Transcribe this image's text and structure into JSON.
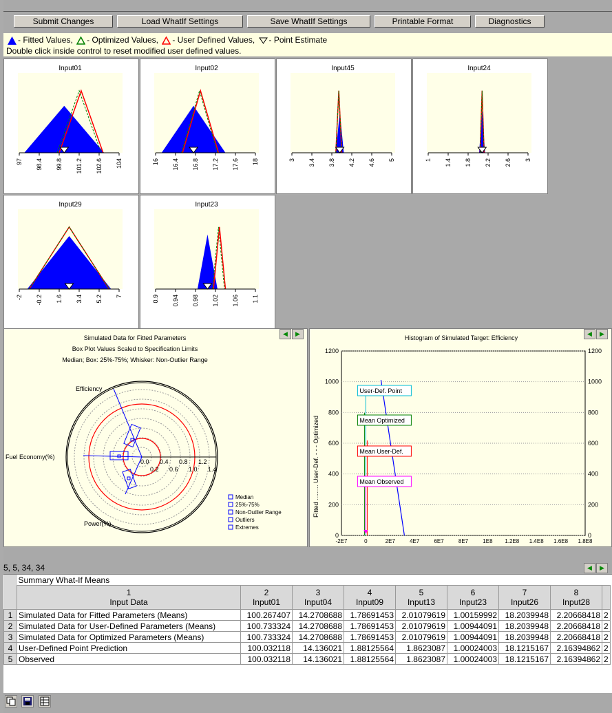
{
  "toolbar": {
    "submit": "Submit Changes",
    "load": "Load WhatIf Settings",
    "save": "Save WhatIf Settings",
    "print": "Printable Format",
    "diag": "Diagnostics"
  },
  "legend": {
    "fitted": "- Fitted Values,",
    "optimized": "- Optimized Values,",
    "user": "- User Defined Values,",
    "point": "- Point Estimate",
    "hint": "Double click inside control to reset modified user defined values."
  },
  "colors": {
    "fitted": "#0000ff",
    "optimized": "#008000",
    "user": "#ff0000",
    "panel_bg": "#ffffe8"
  },
  "chart_data": [
    {
      "type": "area",
      "title": "Input01",
      "ticks": [
        "97",
        "98.4",
        "99.8",
        "101.2",
        "102.6",
        "104"
      ]
    },
    {
      "type": "area",
      "title": "Input02",
      "ticks": [
        "16",
        "16.4",
        "16.8",
        "17.2",
        "17.6",
        "18"
      ]
    },
    {
      "type": "area",
      "title": "Input45",
      "ticks": [
        "3",
        "3.4",
        "3.8",
        "4.2",
        "4.6",
        "5"
      ]
    },
    {
      "type": "area",
      "title": "Input24",
      "ticks": [
        "1",
        "1.4",
        "1.8",
        "2.2",
        "2.6",
        "3"
      ]
    },
    {
      "type": "area",
      "title": "Input29",
      "ticks": [
        "-2",
        "-0.2",
        "1.6",
        "3.4",
        "5.2",
        "7"
      ]
    },
    {
      "type": "area",
      "title": "Input23",
      "ticks": [
        "0.9",
        "0.94",
        "0.98",
        "1.02",
        "1.06",
        "1.1"
      ]
    },
    {
      "type": "other",
      "title": "Simulated Data for Fitted Parameters",
      "subtitle": "Box Plot Values Scaled to Specification Limits",
      "subtitle2": "Median; Box: 25%-75%; Whisker: Non-Outlier Range",
      "axes": [
        "Efficiency",
        "Fuel Economy(%)",
        "Power(%)"
      ],
      "radial_ticks": [
        "0.0",
        "0.2",
        "0.4",
        "0.6",
        "0.8",
        "1.0",
        "1.2",
        "1.4"
      ],
      "legend": [
        "Median",
        "25%-75%",
        "Non-Outlier Range",
        "Outliers",
        "Extremes"
      ]
    },
    {
      "type": "line",
      "title": "Histogram of Simulated Target: Efficiency",
      "yticks": [
        "0",
        "200",
        "400",
        "600",
        "800",
        "1000",
        "1200"
      ],
      "xticks": [
        "-2E7",
        "0",
        "2E7",
        "4E7",
        "6E7",
        "8E7",
        "1E8",
        "1.2E8",
        "1.4E8",
        "1.6E8",
        "1.8E8"
      ],
      "ylabel": "Fitted ......... User-Def. - - - Optimized",
      "labels": [
        "User-Def. Point",
        "Mean Optimized",
        "Mean User-Def.",
        "Mean Observed"
      ]
    }
  ],
  "status": "5, 5, 34, 34",
  "table": {
    "caption": "Summary What-If Means",
    "headers": [
      {
        "num": "1",
        "name": "Input Data"
      },
      {
        "num": "2",
        "name": "Input01"
      },
      {
        "num": "3",
        "name": "Input04"
      },
      {
        "num": "4",
        "name": "Input09"
      },
      {
        "num": "5",
        "name": "Input13"
      },
      {
        "num": "6",
        "name": "Input23"
      },
      {
        "num": "7",
        "name": "Input26"
      },
      {
        "num": "8",
        "name": "Input28"
      }
    ],
    "rows": [
      {
        "n": "1",
        "label": "Simulated Data for Fitted Parameters (Means)",
        "v": [
          "100.267407",
          "14.2708688",
          "1.78691453",
          "2.01079619",
          "1.00159992",
          "18.2039948",
          "2.20668418"
        ]
      },
      {
        "n": "2",
        "label": "Simulated Data for User-Defined Parameters (Means)",
        "v": [
          "100.733324",
          "14.2708688",
          "1.78691453",
          "2.01079619",
          "1.00944091",
          "18.2039948",
          "2.20668418"
        ]
      },
      {
        "n": "3",
        "label": "Simulated Data for Optimized Parameters (Means)",
        "v": [
          "100.733324",
          "14.2708688",
          "1.78691453",
          "2.01079619",
          "1.00944091",
          "18.2039948",
          "2.20668418"
        ]
      },
      {
        "n": "4",
        "label": "User-Defined Point Prediction",
        "v": [
          "100.032118",
          "14.136021",
          "1.88125564",
          "1.8623087",
          "1.00024003",
          "18.1215167",
          "2.16394862"
        ]
      },
      {
        "n": "5",
        "label": "Observed",
        "v": [
          "100.032118",
          "14.136021",
          "1.88125564",
          "1.8623087",
          "1.00024003",
          "18.1215167",
          "2.16394862"
        ]
      }
    ]
  }
}
